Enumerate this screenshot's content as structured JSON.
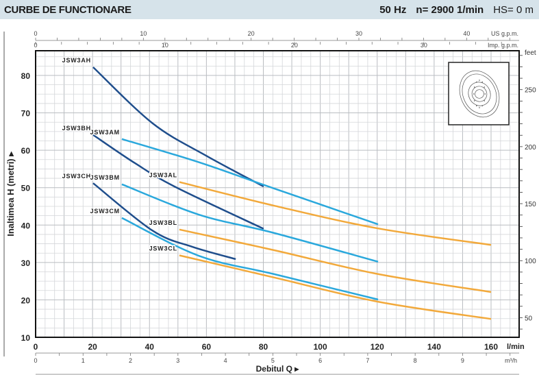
{
  "header": {
    "title": "CURBE DE FUNCTIONARE",
    "freq": "50 Hz",
    "speed": "n= 2900  1/min",
    "hs": "HS= 0 m"
  },
  "chart_data": {
    "type": "line",
    "ylabel": "Inaltimea  H  (metri)",
    "xlabel": "Debitul  Q",
    "x_unit": "l/min",
    "xlim": [
      0,
      170
    ],
    "ylim": [
      10,
      86.6
    ],
    "x_ticks": [
      0,
      20,
      40,
      60,
      80,
      100,
      120,
      140,
      160
    ],
    "y_ticks": [
      10,
      20,
      30,
      40,
      50,
      60,
      70,
      80
    ],
    "grid": true,
    "secondary_axes": {
      "us_gpm": {
        "label": "US g.p.m.",
        "ticks": [
          0,
          10,
          20,
          30,
          40
        ]
      },
      "imp_gpm": {
        "label": "Imp. g.p.m.",
        "ticks": [
          0,
          10,
          20,
          30
        ]
      },
      "m3h": {
        "label": "m³/h",
        "ticks": [
          0,
          1,
          2,
          3,
          4,
          5,
          6,
          7,
          8,
          9
        ]
      },
      "feet": {
        "label": "feet",
        "ticks": [
          50,
          100,
          150,
          200,
          250
        ]
      }
    },
    "series": [
      {
        "name": "JSW3AH",
        "color": "#1f4e8c",
        "points": [
          [
            20.2,
            82.2
          ],
          [
            41.1,
            67.2
          ],
          [
            60,
            58.5
          ],
          [
            80.1,
            50.3
          ]
        ]
      },
      {
        "name": "JSW3BH",
        "color": "#1f4e8c",
        "points": [
          [
            20.2,
            64.1
          ],
          [
            35,
            56.5
          ],
          [
            49.3,
            50.1
          ],
          [
            80.1,
            39.0
          ]
        ]
      },
      {
        "name": "JSW3CH",
        "color": "#1f4e8c",
        "points": [
          [
            20.2,
            51.2
          ],
          [
            41.1,
            38.5
          ],
          [
            55,
            34.2
          ],
          [
            70.3,
            30.9
          ]
        ]
      },
      {
        "name": "JSW3AM",
        "color": "#2aa8dc",
        "points": [
          [
            30.3,
            63.0
          ],
          [
            57.3,
            56.8
          ],
          [
            83.7,
            49.8
          ],
          [
            120.3,
            40.2
          ]
        ]
      },
      {
        "name": "JSW3BM",
        "color": "#2aa8dc",
        "points": [
          [
            30.3,
            50.9
          ],
          [
            57.3,
            42.8
          ],
          [
            83.7,
            37.9
          ],
          [
            120.3,
            30.2
          ]
        ]
      },
      {
        "name": "JSW3CM",
        "color": "#2aa8dc",
        "points": [
          [
            30.3,
            41.9
          ],
          [
            57.3,
            31.8
          ],
          [
            83.7,
            26.9
          ],
          [
            120.3,
            20.1
          ]
        ]
      },
      {
        "name": "JSW3AL",
        "color": "#f2a93b",
        "points": [
          [
            50.5,
            51.5
          ],
          [
            83.7,
            45.2
          ],
          [
            120.3,
            39.1
          ],
          [
            160,
            34.7
          ]
        ]
      },
      {
        "name": "JSW3BL",
        "color": "#f2a93b",
        "points": [
          [
            50.5,
            38.8
          ],
          [
            83.7,
            33.3
          ],
          [
            120.3,
            26.9
          ],
          [
            160,
            22.1
          ]
        ]
      },
      {
        "name": "JSW3CL",
        "color": "#f2a93b",
        "points": [
          [
            50.5,
            31.9
          ],
          [
            83.7,
            26.0
          ],
          [
            120.3,
            19.5
          ],
          [
            160,
            14.9
          ]
        ]
      }
    ]
  }
}
